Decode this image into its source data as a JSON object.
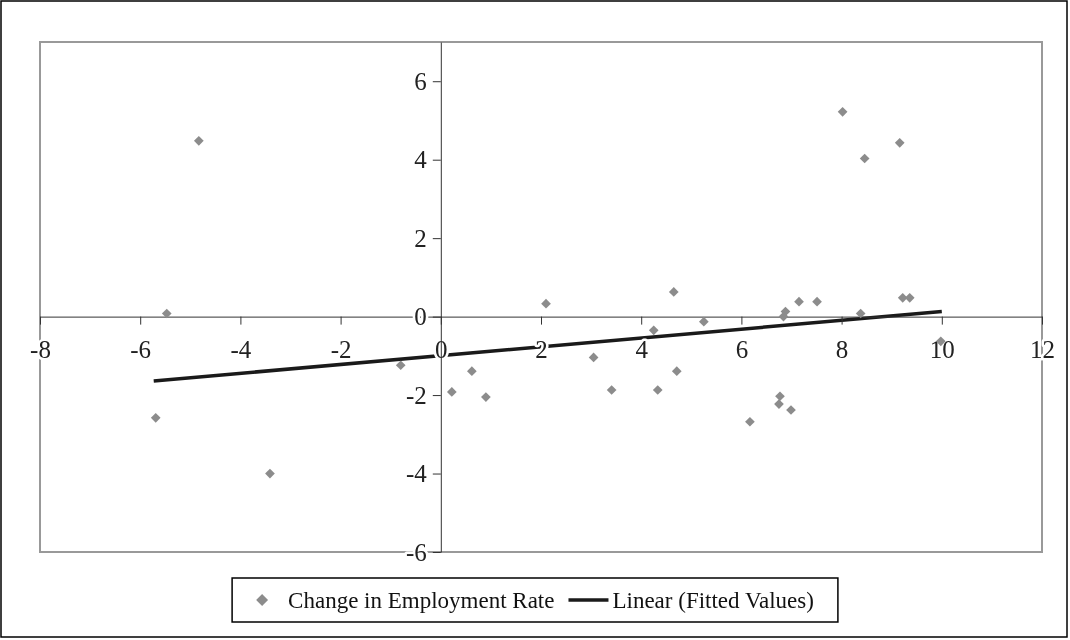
{
  "chart_data": {
    "type": "scatter",
    "xlim": [
      -8,
      12
    ],
    "ylim": [
      -6,
      7
    ],
    "xticks": [
      -8,
      -6,
      -4,
      -2,
      0,
      2,
      4,
      6,
      8,
      10,
      12
    ],
    "yticks": [
      -6,
      -4,
      -2,
      0,
      2,
      4,
      6
    ],
    "grid": false,
    "legend": "bottom",
    "marker": "diamond",
    "series": [
      {
        "name": "Change in Employment Rate",
        "color": "#8c8c8c",
        "x": [
          -5.47,
          -4.83,
          -5.69,
          -3.41,
          -0.8,
          0.22,
          0.62,
          0.9,
          2.1,
          3.05,
          3.41,
          4.25,
          4.33,
          4.65,
          4.71,
          5.25,
          6.17,
          6.77,
          6.75,
          6.99,
          6.88,
          6.84,
          7.15,
          7.51,
          8.38,
          8.02,
          8.46,
          9.16,
          9.22,
          9.36,
          9.98
        ],
        "values": [
          0.08,
          4.48,
          -2.58,
          -4.0,
          -1.24,
          -1.92,
          -1.39,
          -2.05,
          0.33,
          -1.04,
          -1.87,
          -0.35,
          -1.87,
          0.63,
          -1.39,
          -0.13,
          -2.68,
          -2.03,
          -2.23,
          -2.38,
          0.13,
          0.0,
          0.38,
          0.38,
          0.08,
          5.22,
          4.03,
          4.43,
          0.48,
          0.48,
          -0.63
        ]
      },
      {
        "name": "Linear (Fitted Values)",
        "type": "line",
        "color": "#1a1a1a",
        "marker": "none",
        "line_style": "solid",
        "x": [
          -5.73,
          10.0
        ],
        "values": [
          -1.64,
          0.13
        ]
      }
    ]
  }
}
